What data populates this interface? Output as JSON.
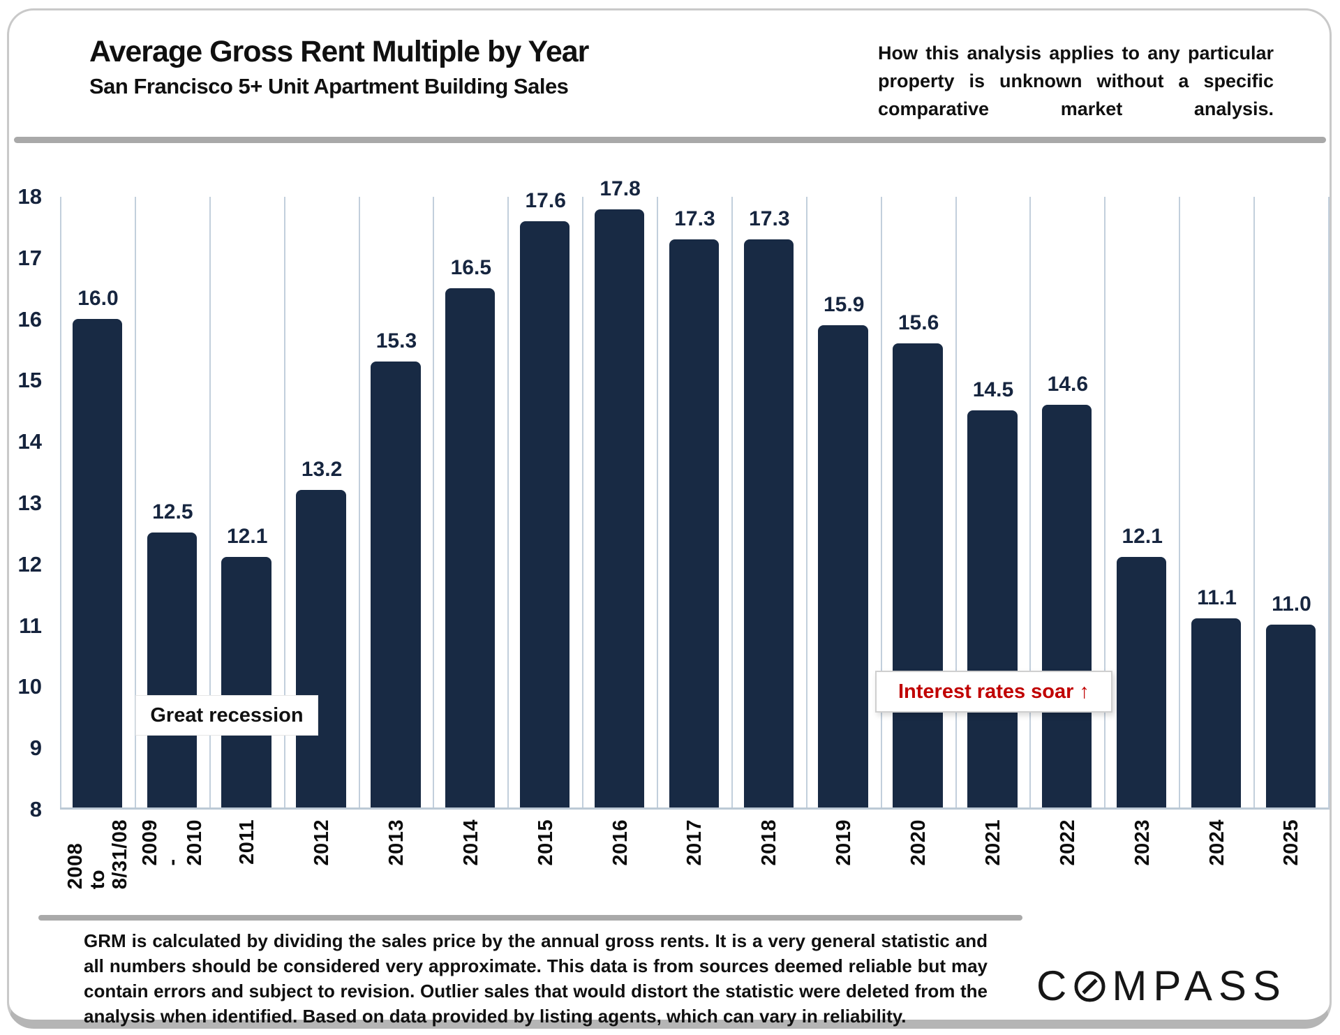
{
  "header": {
    "title": "Average Gross Rent Multiple by Year",
    "subtitle": "San Francisco 5+ Unit Apartment Building Sales",
    "note": "How this analysis applies to any particular property is unknown without a specific comparative market analysis."
  },
  "chart_data": {
    "type": "bar",
    "title": "Average Gross Rent Multiple by Year",
    "subtitle": "San Francisco 5+ Unit Apartment Building Sales",
    "categories": [
      "2008 to\n8/31/08",
      "2009 -\n2010",
      "2011",
      "2012",
      "2013",
      "2014",
      "2015",
      "2016",
      "2017",
      "2018",
      "2019",
      "2020",
      "2021",
      "2022",
      "2023",
      "2024",
      "2025"
    ],
    "values": [
      16.0,
      12.5,
      12.1,
      13.2,
      15.3,
      16.5,
      17.6,
      17.8,
      17.3,
      17.3,
      15.9,
      15.6,
      14.5,
      14.6,
      12.1,
      11.1,
      11.0
    ],
    "xlabel": "",
    "ylabel": "",
    "ylim": [
      8,
      18
    ],
    "ytick_step": 1,
    "value_label_decimals": 1,
    "grid": "vertical-only",
    "legend": "none",
    "bar_color": "#182a44",
    "gridline_color": "#c2cfdc",
    "annotations": [
      {
        "text": "Great recession",
        "color": "#111111"
      },
      {
        "text": "Interest rates soar ↑",
        "color": "#c00000"
      }
    ]
  },
  "annotations": {
    "great_recession": "Great recession",
    "interest_rates": "Interest rates soar ↑"
  },
  "footer": {
    "disclaimer": "GRM is calculated by dividing the sales price by the annual gross rents. It is a very general statistic and all numbers should be considered very approximate. This data is from sources deemed reliable but may contain errors and subject to revision. Outlier sales that would distort the statistic were deleted from the analysis when identified. Based on data provided by listing agents, which can vary in reliability.",
    "logo_text_before_icon": "C",
    "logo_text_after_icon": "MPASS",
    "logo_icon": "compass-needle-icon"
  },
  "colors": {
    "bar": "#182a44",
    "accent_red": "#c00000",
    "gridline": "#c2cfdc",
    "divider": "#a9a9a9"
  }
}
